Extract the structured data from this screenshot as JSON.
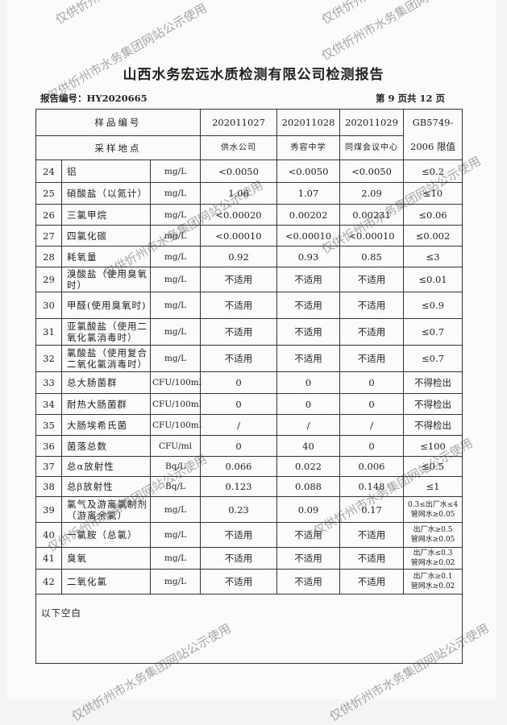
{
  "title": "山西水务宏远水质检测有限公司检测报告",
  "report_no": "报告编号：HY2020665",
  "page_info": "第 9 页共 12 页",
  "watermark": "仅供忻州市水务集团网站公示使用",
  "header": {
    "sample_no_label": "样品编号",
    "site_label": "采样地点",
    "standard_label_1": "GB5749-",
    "standard_label_2": "2006 限值",
    "samples": [
      "202011027",
      "202011028",
      "202011029"
    ],
    "sites": [
      "供水公司",
      "秀容中学",
      "同煤会议中心"
    ]
  },
  "rows": [
    {
      "no": "24",
      "name": "铝",
      "unit": "mg/L",
      "v": [
        "<0.0050",
        "<0.0050",
        "<0.0050"
      ],
      "limit": "≤0.2"
    },
    {
      "no": "25",
      "name": "硝酸盐（以氮计）",
      "unit": "mg/L",
      "v": [
        "1.06",
        "1.07",
        "2.09"
      ],
      "limit": "≤10"
    },
    {
      "no": "26",
      "name": "三氯甲烷",
      "unit": "mg/L",
      "v": [
        "<0.00020",
        "0.00202",
        "0.00231"
      ],
      "limit": "≤0.06"
    },
    {
      "no": "27",
      "name": "四氯化碳",
      "unit": "mg/L",
      "v": [
        "<0.00010",
        "<0.00010",
        "<0.00010"
      ],
      "limit": "≤0.002"
    },
    {
      "no": "28",
      "name": "耗氧量",
      "unit": "mg/L",
      "v": [
        "0.92",
        "0.93",
        "0.85"
      ],
      "limit": "≤3"
    },
    {
      "no": "29",
      "name": "溴酸盐（使用臭氧时）",
      "unit": "mg/L",
      "v": [
        "不适用",
        "不适用",
        "不适用"
      ],
      "limit": "≤0.01"
    },
    {
      "no": "30",
      "name": "甲醛(使用臭氧时)",
      "unit": "mg/L",
      "v": [
        "不适用",
        "不适用",
        "不适用"
      ],
      "limit": "≤0.9"
    },
    {
      "no": "31",
      "name": "亚氯酸盐（使用二氧化氯消毒时）",
      "unit": "mg/L",
      "v": [
        "不适用",
        "不适用",
        "不适用"
      ],
      "limit": "≤0.7"
    },
    {
      "no": "32",
      "name": "氯酸盐（使用复合二氧化氯消毒时）",
      "unit": "mg/L",
      "v": [
        "不适用",
        "不适用",
        "不适用"
      ],
      "limit": "≤0.7"
    },
    {
      "no": "33",
      "name": "总大肠菌群",
      "unit": "CFU/100ml",
      "v": [
        "0",
        "0",
        "0"
      ],
      "limit": "不得检出"
    },
    {
      "no": "34",
      "name": "耐热大肠菌群",
      "unit": "CFU/100ml",
      "v": [
        "0",
        "0",
        "0"
      ],
      "limit": "不得检出"
    },
    {
      "no": "35",
      "name": "大肠埃希氏菌",
      "unit": "CFU/100ml",
      "v": [
        "/",
        "/",
        "/"
      ],
      "limit": "不得检出"
    },
    {
      "no": "36",
      "name": "菌落总数",
      "unit": "CFU/ml",
      "v": [
        "0",
        "40",
        "0"
      ],
      "limit": "≤100"
    },
    {
      "no": "37",
      "name": "总α放射性",
      "unit": "Bq/L",
      "v": [
        "0.066",
        "0.022",
        "0.006"
      ],
      "limit": "≤0.5"
    },
    {
      "no": "38",
      "name": "总β放射性",
      "unit": "Bq/L",
      "v": [
        "0.123",
        "0.088",
        "0.148"
      ],
      "limit": "≤1"
    },
    {
      "no": "39",
      "name": "氯气及游离氯制剂（游离余氯）",
      "unit": "mg/L",
      "v": [
        "0.23",
        "0.09",
        "0.17"
      ],
      "limit": "0.3≤出厂水≤4 管网水≥0.05"
    },
    {
      "no": "40",
      "name": "一氯胺（总氯）",
      "unit": "mg/L",
      "v": [
        "不适用",
        "不适用",
        "不适用"
      ],
      "limit": "出厂水≥0.5 管网水≥0.05"
    },
    {
      "no": "41",
      "name": "臭氧",
      "unit": "mg/L",
      "v": [
        "不适用",
        "不适用",
        "不适用"
      ],
      "limit": "出厂水≤0.3 管网水≥0.02"
    },
    {
      "no": "42",
      "name": "二氧化氯",
      "unit": "mg/L",
      "v": [
        "不适用",
        "不适用",
        "不适用"
      ],
      "limit": "出厂水≥0.1 管网水≥0.02"
    }
  ],
  "footer_note": "以下空白"
}
